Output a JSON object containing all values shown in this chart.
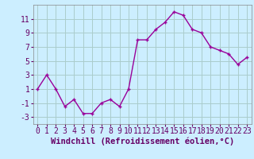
{
  "x": [
    0,
    1,
    2,
    3,
    4,
    5,
    6,
    7,
    8,
    9,
    10,
    11,
    12,
    13,
    14,
    15,
    16,
    17,
    18,
    19,
    20,
    21,
    22,
    23
  ],
  "y": [
    1,
    3,
    1,
    -1.5,
    -0.5,
    -2.5,
    -2.5,
    -1,
    -0.5,
    -1.5,
    1,
    8,
    8,
    9.5,
    10.5,
    12,
    11.5,
    9.5,
    9,
    7,
    6.5,
    6,
    4.5,
    5.5
  ],
  "line_color": "#990099",
  "marker_color": "#990099",
  "bg_color": "#cceeff",
  "grid_color": "#aacccc",
  "xlabel": "Windchill (Refroidissement éolien,°C)",
  "xlabel_fontsize": 7.5,
  "tick_fontsize": 7,
  "ylim": [
    -4,
    13
  ],
  "yticks": [
    -3,
    -1,
    1,
    3,
    5,
    7,
    9,
    11
  ],
  "xlim": [
    -0.5,
    23.5
  ],
  "xtick_labels": [
    "0",
    "1",
    "2",
    "3",
    "4",
    "5",
    "6",
    "7",
    "8",
    "9",
    "10",
    "11",
    "12",
    "13",
    "14",
    "15",
    "16",
    "17",
    "18",
    "19",
    "20",
    "21",
    "22",
    "23"
  ]
}
